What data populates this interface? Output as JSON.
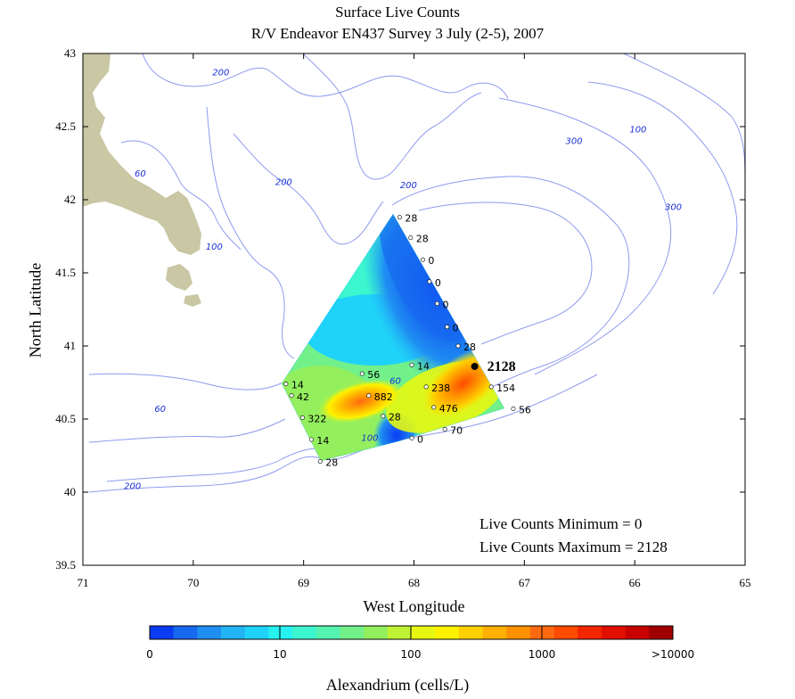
{
  "title": {
    "line1": "Surface Live Counts",
    "line2": "R/V Endeavor EN437 Survey 3 July (2-5), 2007"
  },
  "axes": {
    "xlabel": "West Longitude",
    "ylabel": "North Latitude",
    "x_ticks": [
      "71",
      "70",
      "69",
      "68",
      "67",
      "66",
      "65"
    ],
    "y_ticks": [
      "43",
      "42.5",
      "42",
      "41.5",
      "41",
      "40.5",
      "40",
      "39.5"
    ],
    "x_range": [
      71,
      65
    ],
    "y_range": [
      39.5,
      43
    ]
  },
  "colorbar": {
    "title": "Alexandrium (cells/L)",
    "labels": [
      "0",
      "10",
      "100",
      "1000",
      ">10000"
    ],
    "colors": [
      "#0b3cf5",
      "#1769f0",
      "#1f8ff2",
      "#22b4f5",
      "#1fd2f8",
      "#26f2f0",
      "#3cf6cf",
      "#55f3b0",
      "#72f08a",
      "#93ef5e",
      "#c0f233",
      "#e6f812",
      "#fff200",
      "#ffd000",
      "#ffb000",
      "#ff9000",
      "#ff6a10",
      "#ff4a00",
      "#f52500",
      "#e00f00",
      "#c80000",
      "#a00000"
    ]
  },
  "stats": {
    "min_text": "Live Counts Minimum = 0",
    "max_text": "Live Counts Maximum = 2128"
  },
  "colors": {
    "land": "#c9c7a4",
    "contour": "#8f9bee",
    "contour_label": "#1a2fd6",
    "text": "#000000"
  },
  "contour_labels": [
    {
      "text": "200",
      "lon": 69.75,
      "lat": 42.85
    },
    {
      "text": "60",
      "lon": 70.48,
      "lat": 42.16
    },
    {
      "text": "200",
      "lon": 69.18,
      "lat": 42.1
    },
    {
      "text": "200",
      "lon": 68.05,
      "lat": 42.08
    },
    {
      "text": "100",
      "lon": 69.81,
      "lat": 41.66
    },
    {
      "text": "300",
      "lon": 66.55,
      "lat": 42.38
    },
    {
      "text": "100",
      "lon": 65.97,
      "lat": 42.46
    },
    {
      "text": "300",
      "lon": 65.65,
      "lat": 41.93
    },
    {
      "text": "60",
      "lon": 70.3,
      "lat": 40.55
    },
    {
      "text": "200",
      "lon": 70.55,
      "lat": 40.02
    },
    {
      "text": "60",
      "lon": 68.17,
      "lat": 40.74
    },
    {
      "text": "100",
      "lon": 68.4,
      "lat": 40.35
    }
  ],
  "stations": [
    {
      "label": "28",
      "lon": 68.13,
      "lat": 41.88,
      "value": 28
    },
    {
      "label": "28",
      "lon": 68.03,
      "lat": 41.74,
      "value": 28
    },
    {
      "label": "0",
      "lon": 67.92,
      "lat": 41.59,
      "value": 0
    },
    {
      "label": "0",
      "lon": 67.86,
      "lat": 41.44,
      "value": 0
    },
    {
      "label": "0",
      "lon": 67.79,
      "lat": 41.29,
      "value": 0
    },
    {
      "label": "0",
      "lon": 67.7,
      "lat": 41.13,
      "value": 0
    },
    {
      "label": "28",
      "lon": 67.6,
      "lat": 41.0,
      "value": 28
    },
    {
      "label": "2128",
      "lon": 67.45,
      "lat": 40.86,
      "value": 2128,
      "highlight": true
    },
    {
      "label": "154",
      "lon": 67.3,
      "lat": 40.72,
      "value": 154
    },
    {
      "label": "56",
      "lon": 67.1,
      "lat": 40.57,
      "value": 56
    },
    {
      "label": "70",
      "lon": 67.72,
      "lat": 40.43,
      "value": 70
    },
    {
      "label": "0",
      "lon": 68.02,
      "lat": 40.37,
      "value": 0
    },
    {
      "label": "28",
      "lon": 68.28,
      "lat": 40.52,
      "value": 28
    },
    {
      "label": "476",
      "lon": 67.82,
      "lat": 40.58,
      "value": 476
    },
    {
      "label": "238",
      "lon": 67.89,
      "lat": 40.72,
      "value": 238
    },
    {
      "label": "14",
      "lon": 68.02,
      "lat": 40.87,
      "value": 14
    },
    {
      "label": "56",
      "lon": 68.47,
      "lat": 40.81,
      "value": 56
    },
    {
      "label": "882",
      "lon": 68.41,
      "lat": 40.66,
      "value": 882
    },
    {
      "label": "14",
      "lon": 69.16,
      "lat": 40.74,
      "value": 14
    },
    {
      "label": "42",
      "lon": 69.11,
      "lat": 40.66,
      "value": 42
    },
    {
      "label": "322",
      "lon": 69.01,
      "lat": 40.51,
      "value": 322
    },
    {
      "label": "14",
      "lon": 68.93,
      "lat": 40.36,
      "value": 14
    },
    {
      "label": "28",
      "lon": 68.85,
      "lat": 40.21,
      "value": 28
    }
  ]
}
